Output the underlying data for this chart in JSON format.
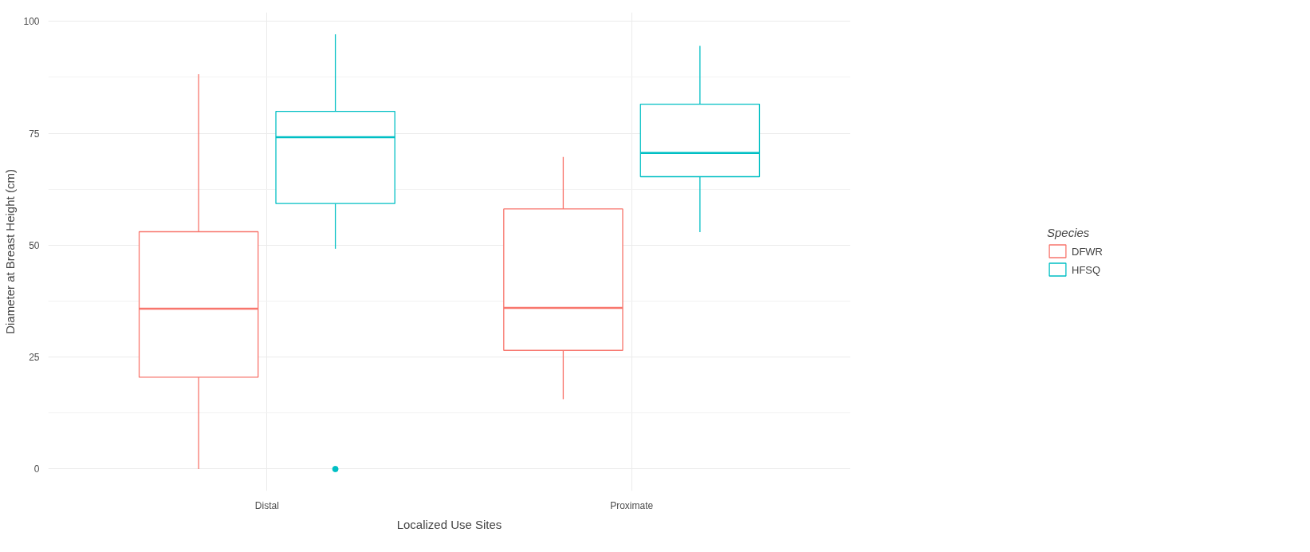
{
  "chart_data": {
    "type": "box",
    "xlabel": "Localized Use Sites",
    "ylabel": "Diameter at Breast Height (cm)",
    "legend_title": "Species",
    "categories": [
      "Distal",
      "Proximate"
    ],
    "series": [
      {
        "name": "DFWR",
        "color": "#f8766d",
        "boxes": [
          {
            "low": 0,
            "q1": 20.5,
            "median": 35.8,
            "q3": 53,
            "high": 88.2
          },
          {
            "low": 15.6,
            "q1": 26.5,
            "median": 36,
            "q3": 58.1,
            "high": 69.7
          }
        ]
      },
      {
        "name": "HFSQ",
        "color": "#00bfc4",
        "boxes": [
          {
            "low": 49.2,
            "q1": 59.3,
            "median": 74.1,
            "q3": 79.9,
            "high": 97.1,
            "outliers": [
              0
            ]
          },
          {
            "low": 52.9,
            "q1": 65.3,
            "median": 70.6,
            "q3": 81.5,
            "high": 94.5
          }
        ]
      }
    ],
    "ylim": [
      -4.9,
      102
    ],
    "yticks": [
      0,
      25,
      50,
      75,
      100
    ],
    "grid": true,
    "legend": "right"
  }
}
